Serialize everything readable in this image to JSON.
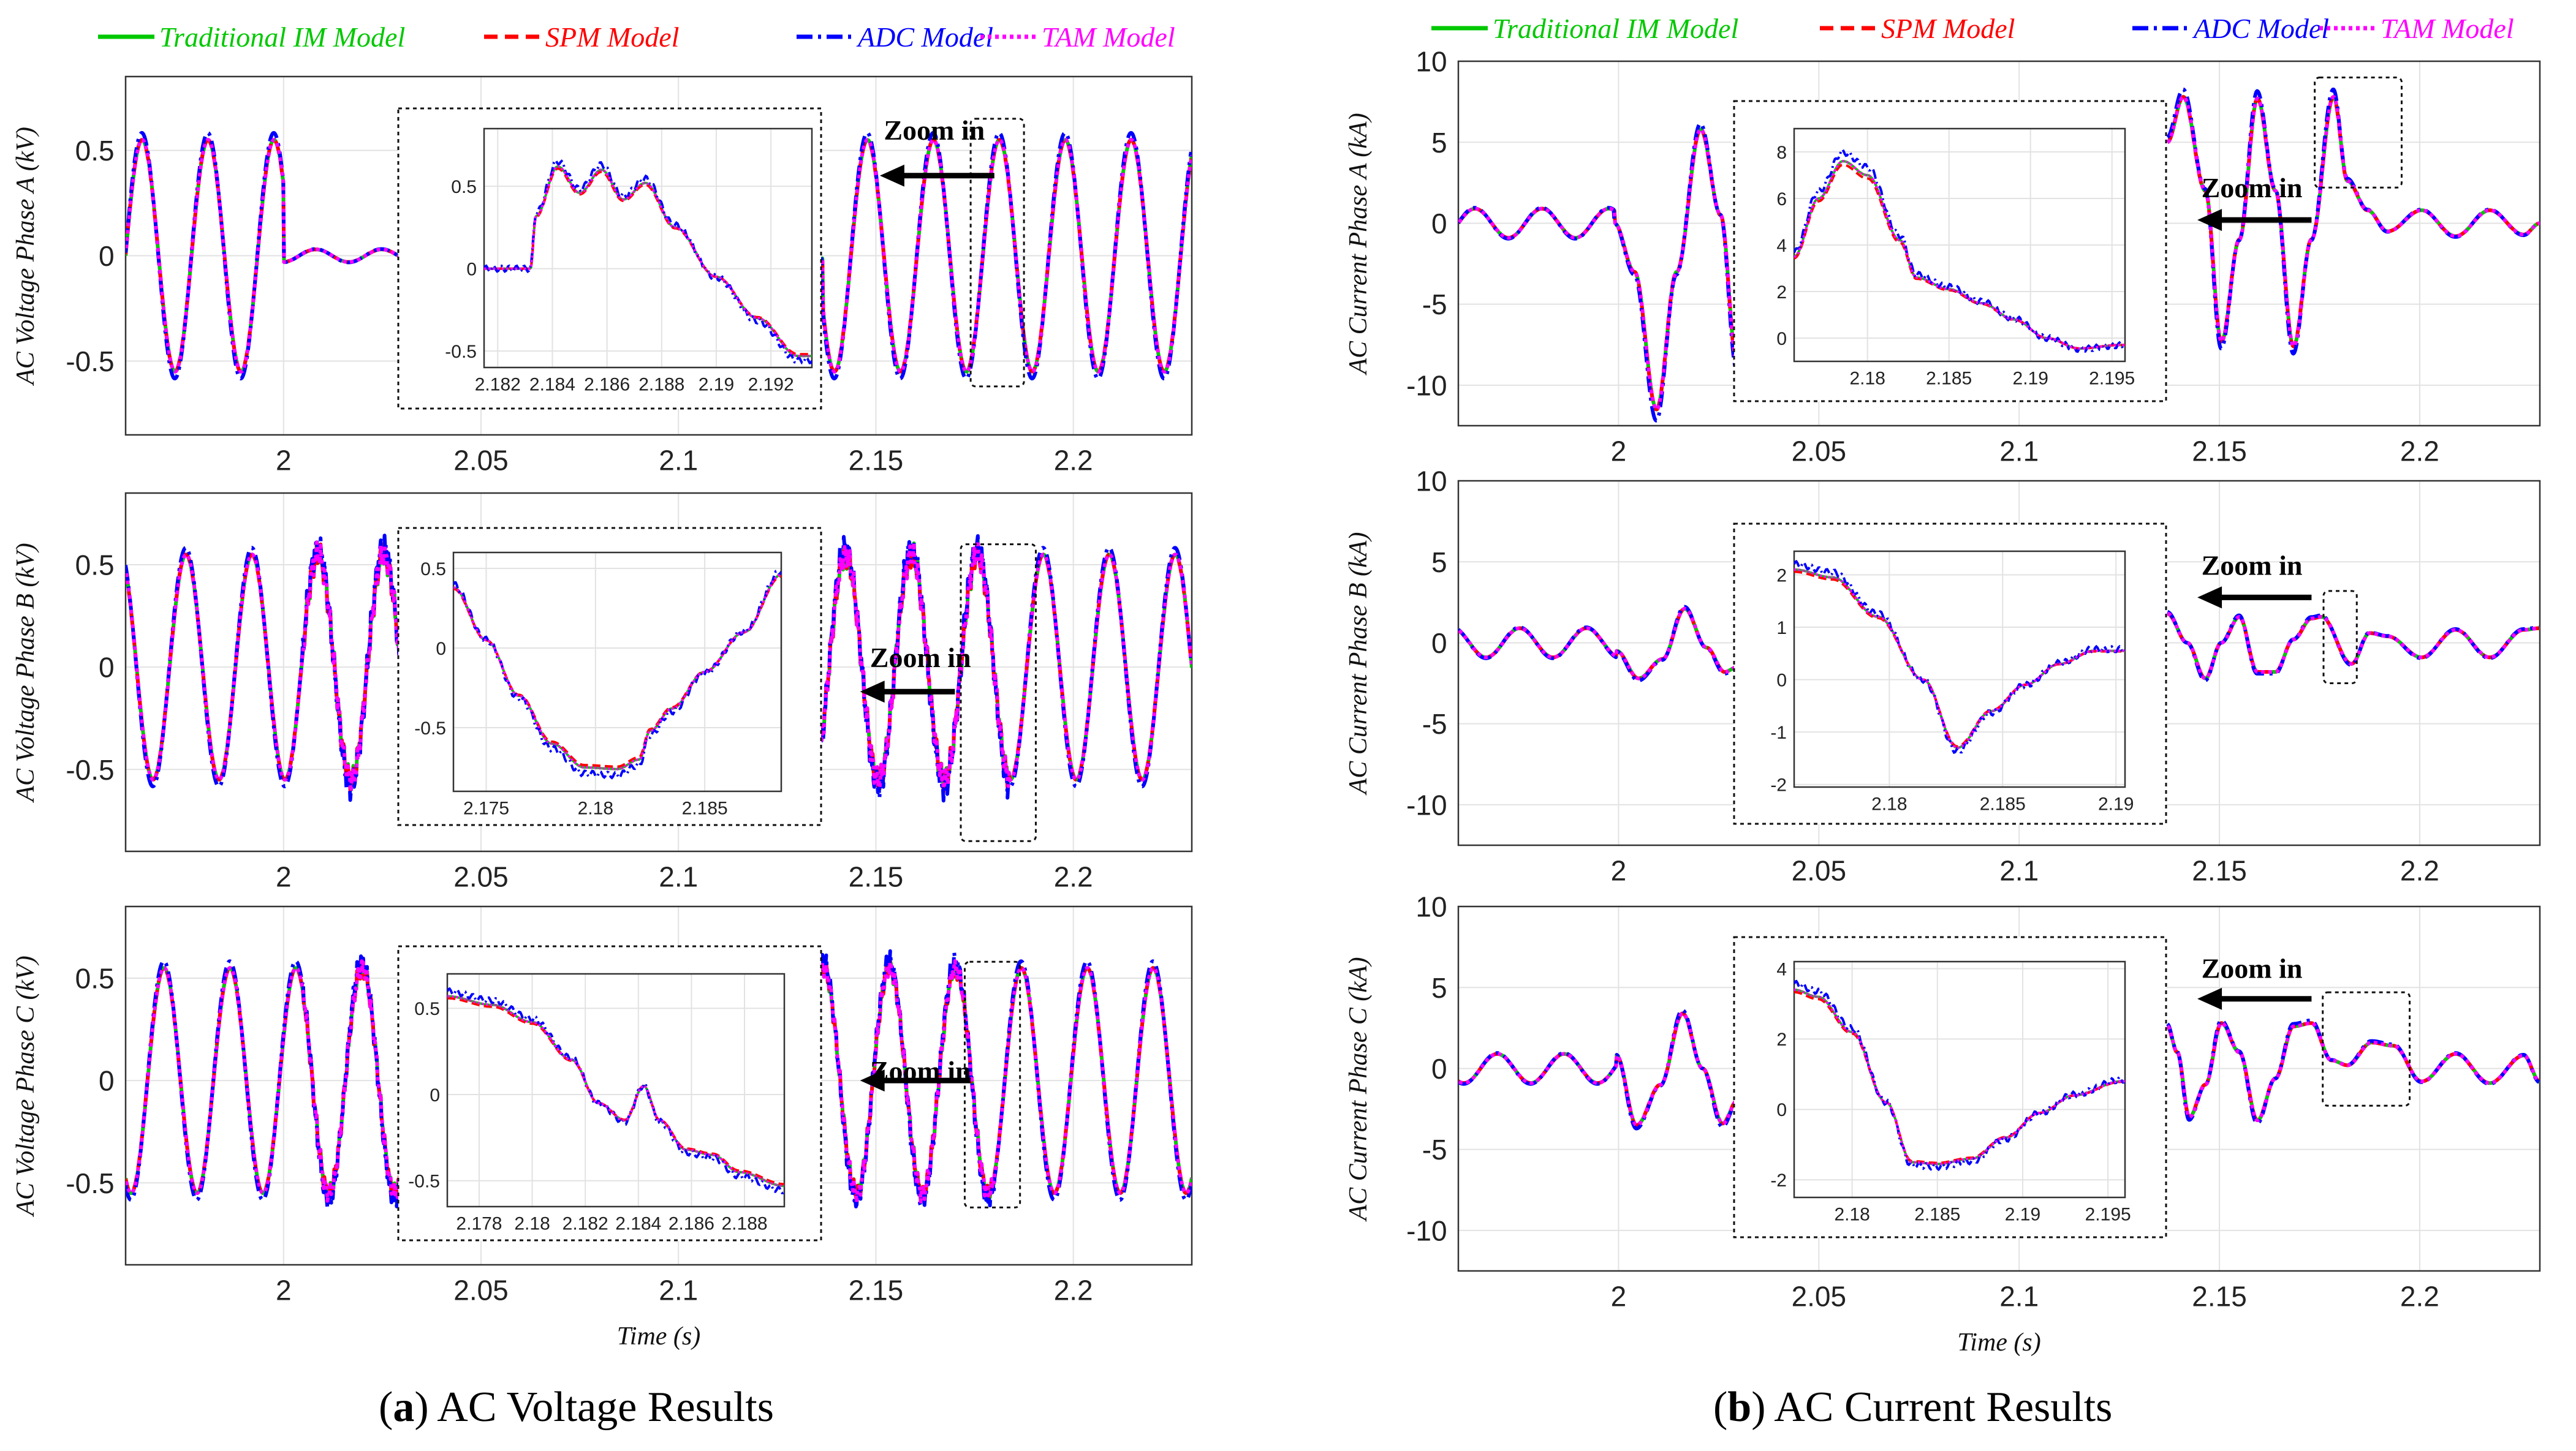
{
  "legend": [
    {
      "label": "Traditional IM Model",
      "color": "#00c800",
      "dash": "solid"
    },
    {
      "label": "SPM Model",
      "color": "#ff0000",
      "dash": "dashed"
    },
    {
      "label": "ADC Model",
      "color": "#0000ff",
      "dash": "dashdot"
    },
    {
      "label": "TAM Model",
      "color": "#ff00ff",
      "dash": "dotted"
    }
  ],
  "zoom_label": "Zoom in",
  "captions": {
    "a_letter": "a",
    "a_text": " AC Voltage Results",
    "b_letter": "b",
    "b_text": " AC Current Results"
  },
  "chart_data": [
    {
      "type": "line",
      "id": "va",
      "title": "",
      "xlabel": "",
      "ylabel": "AC Voltage Phase A (kV)",
      "xlim": [
        1.96,
        2.23
      ],
      "ylim": [
        -0.85,
        0.85
      ],
      "xticks": [
        2,
        2.05,
        2.1,
        2.15,
        2.2
      ],
      "xtick_labels": [
        "2",
        "2.05",
        "2.1",
        "2.15",
        "2.2"
      ],
      "yticks": [
        -0.5,
        0,
        0.5
      ],
      "ytick_labels": [
        "-0.5",
        "0",
        "0.5"
      ],
      "wave": {
        "amplitude": 0.55,
        "period": 0.0167,
        "phase": 0.0
      },
      "segments": [
        [
          1.96,
          2.0
        ],
        [
          2.1365,
          2.23
        ]
      ],
      "low_ripple": {
        "range": [
          2.0,
          2.179
        ],
        "amplitude": 0.03
      },
      "inset": {
        "xlim": [
          2.1815,
          2.1935
        ],
        "ylim": [
          -0.6,
          0.85
        ],
        "xticks": [
          2.182,
          2.184,
          2.186,
          2.188,
          2.19,
          2.192
        ],
        "xtick_labels": [
          "2.182",
          "2.184",
          "2.186",
          "2.188",
          "2.19",
          "2.192"
        ],
        "yticks": [
          -0.5,
          0,
          0.5
        ],
        "ytick_labels": [
          "-0.5",
          "0",
          "0.5"
        ],
        "points": [
          [
            2.1815,
            0
          ],
          [
            2.1832,
            0
          ],
          [
            2.1834,
            0.32
          ],
          [
            2.1842,
            0.62
          ],
          [
            2.185,
            0.46
          ],
          [
            2.1858,
            0.6
          ],
          [
            2.1866,
            0.42
          ],
          [
            2.1874,
            0.52
          ],
          [
            2.1885,
            0.25
          ],
          [
            2.19,
            -0.05
          ],
          [
            2.1915,
            -0.3
          ],
          [
            2.193,
            -0.53
          ]
        ]
      },
      "zoom": {
        "label_x": 2.152,
        "label_y": 0.55,
        "arrow_from": 2.18,
        "arrow_to": 2.151,
        "arrow_y": 0.38
      }
    },
    {
      "type": "line",
      "id": "vb",
      "title": "",
      "xlabel": "",
      "ylabel": "AC Voltage Phase B (kV)",
      "xlim": [
        1.96,
        2.23
      ],
      "ylim": [
        -0.9,
        0.85
      ],
      "xticks": [
        2,
        2.05,
        2.1,
        2.15,
        2.2
      ],
      "xtick_labels": [
        "2",
        "2.05",
        "2.1",
        "2.15",
        "2.2"
      ],
      "yticks": [
        -0.5,
        0,
        0.5
      ],
      "ytick_labels": [
        "-0.5",
        "0",
        "0.5"
      ],
      "wave": {
        "amplitude": 0.55,
        "period": 0.0167,
        "phase": 2.094
      },
      "segments": [
        [
          1.96,
          2.0296
        ],
        [
          2.136,
          2.23
        ]
      ],
      "noise": {
        "range": [
          2.005,
          2.184
        ],
        "amplitude": 0.07
      },
      "inset": {
        "xlim": [
          2.1735,
          2.1885
        ],
        "ylim": [
          -0.9,
          0.6
        ],
        "xticks": [
          2.175,
          2.18,
          2.185
        ],
        "xtick_labels": [
          "2.175",
          "2.18",
          "2.185"
        ],
        "yticks": [
          -0.5,
          0,
          0.5
        ],
        "ytick_labels": [
          "-0.5",
          "0",
          "0.5"
        ],
        "points": [
          [
            2.1735,
            0.38
          ],
          [
            2.175,
            0.05
          ],
          [
            2.1765,
            -0.3
          ],
          [
            2.178,
            -0.6
          ],
          [
            2.1795,
            -0.75
          ],
          [
            2.181,
            -0.76
          ],
          [
            2.182,
            -0.7
          ],
          [
            2.1825,
            -0.52
          ],
          [
            2.1835,
            -0.38
          ],
          [
            2.185,
            -0.15
          ],
          [
            2.1868,
            0.1
          ],
          [
            2.1885,
            0.46
          ]
        ]
      },
      "zoom": {
        "label_x": 2.1485,
        "label_y": 0.0,
        "arrow_from": 2.17,
        "arrow_to": 2.146,
        "arrow_y": -0.12
      }
    },
    {
      "type": "line",
      "id": "vc",
      "title": "",
      "xlabel": "Time (s)",
      "ylabel": "AC Voltage Phase C (kV)",
      "xlim": [
        1.96,
        2.23
      ],
      "ylim": [
        -0.9,
        0.85
      ],
      "xticks": [
        2,
        2.05,
        2.1,
        2.15,
        2.2
      ],
      "xtick_labels": [
        "2",
        "2.05",
        "2.1",
        "2.15",
        "2.2"
      ],
      "yticks": [
        -0.5,
        0,
        0.5
      ],
      "ytick_labels": [
        "-0.5",
        "0",
        "0.5"
      ],
      "wave": {
        "amplitude": 0.55,
        "period": 0.0167,
        "phase": -2.094
      },
      "segments": [
        [
          1.96,
          2.0296
        ],
        [
          2.136,
          2.23
        ]
      ],
      "noise": {
        "range": [
          2.005,
          2.18
        ],
        "amplitude": 0.05
      },
      "inset": {
        "xlim": [
          2.1768,
          2.1895
        ],
        "ylim": [
          -0.65,
          0.7
        ],
        "xticks": [
          2.178,
          2.18,
          2.182,
          2.184,
          2.186,
          2.188
        ],
        "xtick_labels": [
          "2.178",
          "2.18",
          "2.182",
          "2.184",
          "2.186",
          "2.188"
        ],
        "yticks": [
          -0.5,
          0,
          0.5
        ],
        "ytick_labels": [
          "-0.5",
          "0",
          "0.5"
        ],
        "points": [
          [
            2.1768,
            0.57
          ],
          [
            2.1785,
            0.52
          ],
          [
            2.18,
            0.42
          ],
          [
            2.1815,
            0.2
          ],
          [
            2.1825,
            -0.05
          ],
          [
            2.1835,
            -0.15
          ],
          [
            2.1842,
            0.05
          ],
          [
            2.1848,
            -0.15
          ],
          [
            2.1858,
            -0.32
          ],
          [
            2.1868,
            -0.35
          ],
          [
            2.1878,
            -0.45
          ],
          [
            2.1895,
            -0.53
          ]
        ]
      },
      "zoom": {
        "label_x": 2.1485,
        "label_y": 0.0,
        "arrow_from": 2.174,
        "arrow_to": 2.146,
        "arrow_y": 0.0
      }
    },
    {
      "type": "line",
      "id": "ia",
      "title": "",
      "xlabel": "",
      "ylabel": "AC Current Phase A (kA)",
      "xlim": [
        1.96,
        2.23
      ],
      "ylim": [
        -12.5,
        10
      ],
      "xticks": [
        2,
        2.05,
        2.1,
        2.15,
        2.2
      ],
      "xtick_labels": [
        "2",
        "2.05",
        "2.1",
        "2.15",
        "2.2"
      ],
      "yticks": [
        -10,
        -5,
        0,
        5,
        10
      ],
      "ytick_labels": [
        "-10",
        "-5",
        "0",
        "5",
        "10"
      ],
      "pre_fault": {
        "range": [
          1.96,
          1.999
        ],
        "amplitude": 0.9,
        "period": 0.0167,
        "phase": 0.0
      },
      "transient": [
        [
          1.999,
          0.0
        ],
        [
          2.004,
          -3.0
        ],
        [
          2.0095,
          -11.5
        ],
        [
          2.0145,
          -3.0
        ],
        [
          2.0205,
          5.8
        ],
        [
          2.0255,
          0.5
        ],
        [
          2.0295,
          -8.5
        ]
      ],
      "post_fault": {
        "range": [
          2.137,
          2.23
        ],
        "points": [
          [
            2.137,
            5.0
          ],
          [
            2.141,
            7.8
          ],
          [
            2.1465,
            2.0
          ],
          [
            2.1505,
            -7.3
          ],
          [
            2.155,
            -1.0
          ],
          [
            2.1595,
            7.7
          ],
          [
            2.164,
            2.0
          ],
          [
            2.1685,
            -7.6
          ],
          [
            2.173,
            -1.0
          ],
          [
            2.1785,
            7.8
          ],
          [
            2.182,
            2.6
          ],
          [
            2.187,
            0.8
          ],
          [
            2.192,
            -0.5
          ],
          [
            2.2005,
            0.8
          ],
          [
            2.209,
            -0.8
          ],
          [
            2.2175,
            0.8
          ],
          [
            2.226,
            -0.7
          ],
          [
            2.23,
            0.0
          ]
        ]
      },
      "inset": {
        "xlim": [
          2.1755,
          2.1958
        ],
        "ylim": [
          -1,
          9
        ],
        "xticks": [
          2.18,
          2.185,
          2.19,
          2.195
        ],
        "xtick_labels": [
          "2.18",
          "2.185",
          "2.19",
          "2.195"
        ],
        "yticks": [
          0,
          2,
          4,
          6,
          8
        ],
        "ytick_labels": [
          "0",
          "2",
          "4",
          "6",
          "8"
        ],
        "points": [
          [
            2.1755,
            3.5
          ],
          [
            2.177,
            6.0
          ],
          [
            2.1785,
            7.6
          ],
          [
            2.18,
            7.0
          ],
          [
            2.182,
            4.2
          ],
          [
            2.183,
            2.6
          ],
          [
            2.185,
            2.1
          ],
          [
            2.187,
            1.5
          ],
          [
            2.189,
            0.8
          ],
          [
            2.191,
            0.0
          ],
          [
            2.193,
            -0.45
          ],
          [
            2.1955,
            -0.3
          ]
        ]
      },
      "zoom": {
        "label_x": 2.1455,
        "label_y": 1.6,
        "arrow_from": 2.173,
        "arrow_to": 2.1445,
        "arrow_y": 0.2
      }
    },
    {
      "type": "line",
      "id": "ib",
      "title": "",
      "xlabel": "",
      "ylabel": "AC Current Phase B (kA)",
      "xlim": [
        1.96,
        2.23
      ],
      "ylim": [
        -12.5,
        10
      ],
      "xticks": [
        2,
        2.05,
        2.1,
        2.15,
        2.2
      ],
      "xtick_labels": [
        "2",
        "2.05",
        "2.1",
        "2.15",
        "2.2"
      ],
      "yticks": [
        -10,
        -5,
        0,
        5,
        10
      ],
      "ytick_labels": [
        "-10",
        "-5",
        "0",
        "5",
        "10"
      ],
      "pre_fault": {
        "range": [
          1.96,
          1.9995
        ],
        "amplitude": 0.9,
        "period": 0.0167,
        "phase": 2.094
      },
      "transient": [
        [
          1.9995,
          -0.5
        ],
        [
          2.005,
          -2.2
        ],
        [
          2.011,
          -1.0
        ],
        [
          2.0165,
          2.1
        ],
        [
          2.022,
          -0.3
        ],
        [
          2.0265,
          -1.8
        ],
        [
          2.0296,
          -1.5
        ]
      ],
      "post_fault": {
        "range": [
          2.137,
          2.23
        ],
        "points": [
          [
            2.137,
            1.8
          ],
          [
            2.142,
            0.0
          ],
          [
            2.1465,
            -2.2
          ],
          [
            2.1505,
            0.0
          ],
          [
            2.155,
            1.6
          ],
          [
            2.1595,
            -1.8
          ],
          [
            2.164,
            -1.8
          ],
          [
            2.1685,
            0.2
          ],
          [
            2.173,
            1.5
          ],
          [
            2.1755,
            1.6
          ],
          [
            2.183,
            -1.3
          ],
          [
            2.1875,
            0.6
          ],
          [
            2.192,
            0.4
          ],
          [
            2.2005,
            -0.9
          ],
          [
            2.209,
            0.8
          ],
          [
            2.2175,
            -0.9
          ],
          [
            2.226,
            0.8
          ],
          [
            2.23,
            0.9
          ]
        ]
      },
      "inset": {
        "xlim": [
          2.1758,
          2.1904
        ],
        "ylim": [
          -2.05,
          2.45
        ],
        "xticks": [
          2.18,
          2.185,
          2.19
        ],
        "xtick_labels": [
          "2.18",
          "2.185",
          "2.19"
        ],
        "yticks": [
          -2,
          -1,
          0,
          1,
          2
        ],
        "ytick_labels": [
          "-2",
          "-1",
          "0",
          "1",
          "2"
        ],
        "points": [
          [
            2.1758,
            2.1
          ],
          [
            2.1775,
            1.95
          ],
          [
            2.1795,
            1.2
          ],
          [
            2.1815,
            0.0
          ],
          [
            2.183,
            -1.3
          ],
          [
            2.1845,
            -0.6
          ],
          [
            2.186,
            -0.1
          ],
          [
            2.1875,
            0.3
          ],
          [
            2.189,
            0.55
          ],
          [
            2.1904,
            0.55
          ]
        ]
      },
      "zoom": {
        "label_x": 2.1455,
        "label_y": 4.2,
        "arrow_from": 2.173,
        "arrow_to": 2.1445,
        "arrow_y": 2.8
      }
    },
    {
      "type": "line",
      "id": "ic",
      "title": "",
      "xlabel": "Time (s)",
      "ylabel": "AC Current Phase C (kA)",
      "xlim": [
        1.96,
        2.23
      ],
      "ylim": [
        -12.5,
        10
      ],
      "xticks": [
        2,
        2.05,
        2.1,
        2.15,
        2.2
      ],
      "xtick_labels": [
        "2",
        "2.05",
        "2.1",
        "2.15",
        "2.2"
      ],
      "yticks": [
        -10,
        -5,
        0,
        5,
        10
      ],
      "ytick_labels": [
        "-10",
        "-5",
        "0",
        "5",
        "10"
      ],
      "pre_fault": {
        "range": [
          1.96,
          1.9995
        ],
        "amplitude": 0.9,
        "period": 0.0167,
        "phase": -2.094
      },
      "transient": [
        [
          1.9995,
          0.8
        ],
        [
          2.0045,
          -3.5
        ],
        [
          2.0105,
          -1.0
        ],
        [
          2.016,
          3.4
        ],
        [
          2.021,
          0.0
        ],
        [
          2.026,
          -3.4
        ],
        [
          2.0296,
          -2.0
        ]
      ],
      "post_fault": {
        "range": [
          2.137,
          2.23
        ],
        "points": [
          [
            2.137,
            2.6
          ],
          [
            2.1395,
            1.0
          ],
          [
            2.1425,
            -3.0
          ],
          [
            2.1465,
            -1.0
          ],
          [
            2.1505,
            2.8
          ],
          [
            2.155,
            1.0
          ],
          [
            2.1595,
            -3.2
          ],
          [
            2.164,
            -0.6
          ],
          [
            2.1685,
            2.6
          ],
          [
            2.173,
            2.8
          ],
          [
            2.178,
            0.5
          ],
          [
            2.182,
            0.2
          ],
          [
            2.188,
            1.6
          ],
          [
            2.1935,
            1.4
          ],
          [
            2.2005,
            -0.8
          ],
          [
            2.209,
            0.9
          ],
          [
            2.2175,
            -0.9
          ],
          [
            2.226,
            0.8
          ],
          [
            2.23,
            -0.8
          ]
        ]
      },
      "inset": {
        "xlim": [
          2.1766,
          2.196
        ],
        "ylim": [
          -2.5,
          4.2
        ],
        "xticks": [
          2.18,
          2.185,
          2.19,
          2.195
        ],
        "xtick_labels": [
          "2.18",
          "2.185",
          "2.19",
          "2.195"
        ],
        "yticks": [
          -2,
          0,
          2,
          4
        ],
        "ytick_labels": [
          "-2",
          "0",
          "2",
          "4"
        ],
        "points": [
          [
            2.1766,
            3.4
          ],
          [
            2.178,
            3.2
          ],
          [
            2.18,
            2.2
          ],
          [
            2.182,
            0.2
          ],
          [
            2.1835,
            -1.5
          ],
          [
            2.185,
            -1.55
          ],
          [
            2.187,
            -1.4
          ],
          [
            2.189,
            -0.8
          ],
          [
            2.191,
            -0.1
          ],
          [
            2.193,
            0.4
          ],
          [
            2.1958,
            0.8
          ]
        ]
      },
      "zoom": {
        "label_x": 2.1455,
        "label_y": 5.6,
        "arrow_from": 2.173,
        "arrow_to": 2.1445,
        "arrow_y": 4.3
      }
    }
  ]
}
